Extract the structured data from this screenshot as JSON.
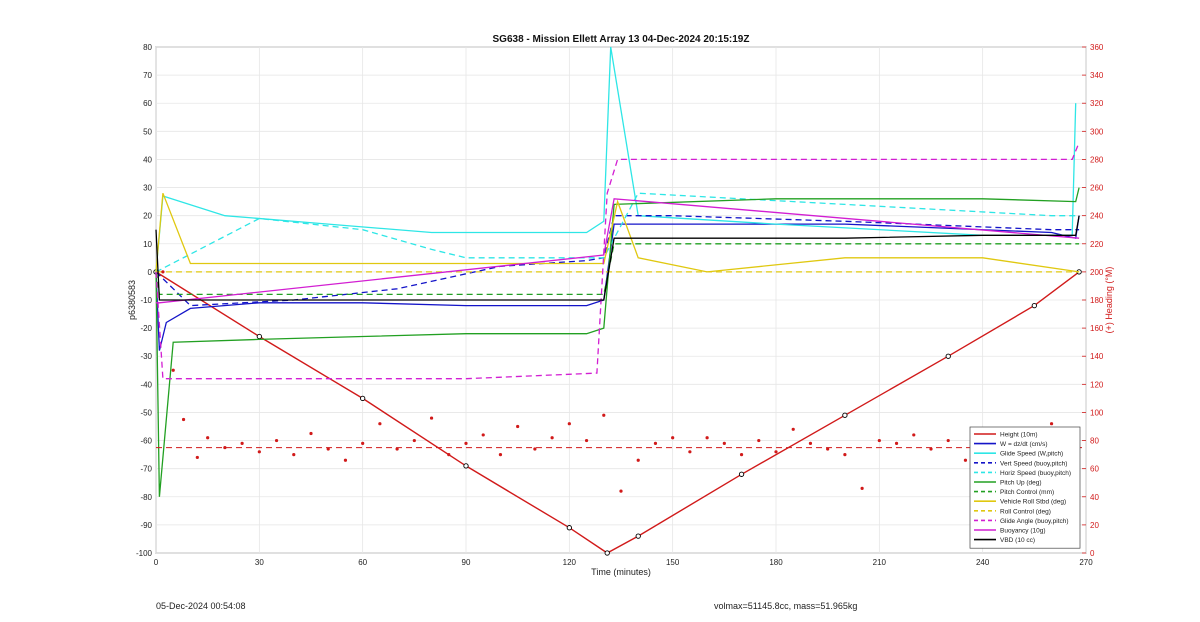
{
  "footer": {
    "left": "05-Dec-2024 00:54:08",
    "right": "volmax=51145.8cc, mass=51.965kg"
  },
  "colors": {
    "height": "#d11a1a",
    "w": "#1414c8",
    "glide_speed": "#2ee6e6",
    "vert_speed": "#1414c8",
    "horiz_speed": "#2ee6e6",
    "pitch_up": "#22a022",
    "pitch_control": "#22a022",
    "vehicle_roll": "#e0c810",
    "roll_control": "#e0c810",
    "glide_angle": "#d21ed2",
    "buoyancy": "#d21ed2",
    "vbd": "#000000",
    "heading": "#d11a1a"
  },
  "chart_data": {
    "type": "line",
    "title": "SG638 - Mission Ellett Array 13 04-Dec-2024 20:15:19Z",
    "xlabel": "Time (minutes)",
    "ylabel": "p6380583",
    "y2label": "(+) Heading (°M)",
    "xlim": [
      0,
      270
    ],
    "ylim": [
      -100,
      80
    ],
    "y2lim": [
      0,
      360
    ],
    "xticks": [
      "0",
      "30",
      "60",
      "90",
      "120",
      "150",
      "180",
      "210",
      "240",
      "270"
    ],
    "yticks": [
      "-100",
      "-90",
      "-80",
      "-70",
      "-60",
      "-50",
      "-40",
      "-30",
      "-20",
      "-10",
      "0",
      "10",
      "20",
      "30",
      "40",
      "50",
      "60",
      "70",
      "80"
    ],
    "y2ticks": [
      "0",
      "20",
      "40",
      "60",
      "80",
      "100",
      "120",
      "140",
      "160",
      "180",
      "200",
      "220",
      "240",
      "260",
      "280",
      "300",
      "320",
      "340",
      "360"
    ],
    "grid": true,
    "legend_position": "bottom-right",
    "series": [
      {
        "name": "Height (10m)",
        "key": "height",
        "style": "solid",
        "x": [
          0,
          30,
          60,
          90,
          120,
          131,
          140,
          170,
          200,
          230,
          255,
          268
        ],
        "y": [
          0,
          -23,
          -45,
          -69,
          -91,
          -100,
          -94,
          -72,
          -51,
          -30,
          -12,
          0
        ]
      },
      {
        "name": "W = dz/dt (cm/s)",
        "key": "w",
        "style": "solid",
        "x": [
          0,
          1,
          3,
          10,
          30,
          60,
          90,
          125,
          130,
          133,
          150,
          200,
          260,
          267,
          268
        ],
        "y": [
          0,
          -28,
          -18,
          -13,
          -11,
          -11,
          -12,
          -12,
          -10,
          17,
          17,
          17,
          14,
          12,
          20
        ]
      },
      {
        "name": "Glide Speed (W,pitch)",
        "key": "glide_speed",
        "style": "solid",
        "x": [
          0,
          2,
          20,
          50,
          80,
          110,
          125,
          130,
          132,
          140,
          180,
          240,
          266,
          267
        ],
        "y": [
          0,
          27,
          20,
          17,
          14,
          14,
          14,
          18,
          80,
          20,
          17,
          13,
          13,
          60
        ]
      },
      {
        "name": "Vert Speed (buoy,pitch)",
        "key": "vert_speed",
        "style": "dashed",
        "x": [
          0,
          10,
          40,
          70,
          100,
          125,
          130,
          133,
          150,
          200,
          260,
          268
        ],
        "y": [
          0,
          -12,
          -10,
          -6,
          2,
          4,
          5,
          20,
          20,
          18,
          15,
          15
        ]
      },
      {
        "name": "Horiz Speed (buoy,pitch)",
        "key": "horiz_speed",
        "style": "dashed",
        "x": [
          0,
          30,
          60,
          80,
          90,
          130,
          140,
          200,
          260,
          268
        ],
        "y": [
          0,
          19,
          15,
          8,
          5,
          5,
          28,
          24,
          20,
          20
        ]
      },
      {
        "name": "Pitch Up (deg)",
        "key": "pitch_up",
        "style": "solid",
        "x": [
          0,
          1,
          5,
          30,
          60,
          90,
          125,
          130,
          133,
          180,
          240,
          267,
          268
        ],
        "y": [
          0,
          -80,
          -25,
          -24,
          -23,
          -22,
          -22,
          -20,
          24,
          26,
          26,
          25,
          30
        ]
      },
      {
        "name": "Pitch Control (mm)",
        "key": "pitch_control",
        "style": "dashed",
        "x": [
          0,
          1,
          130,
          133,
          268
        ],
        "y": [
          0,
          -8,
          -8,
          10,
          10
        ]
      },
      {
        "name": "Vehicle Roll Stbd (deg)",
        "key": "vehicle_roll",
        "style": "solid",
        "x": [
          0,
          2,
          10,
          30,
          60,
          90,
          120,
          130,
          134,
          140,
          160,
          200,
          240,
          268
        ],
        "y": [
          0,
          28,
          3,
          3,
          3,
          3,
          3,
          3,
          25,
          5,
          0,
          5,
          5,
          0
        ]
      },
      {
        "name": "Roll Control (deg)",
        "key": "roll_control",
        "style": "dashed",
        "x": [
          0,
          1,
          130,
          133,
          268
        ],
        "y": [
          0,
          0,
          0,
          0,
          0
        ]
      },
      {
        "name": "Glide Angle (buoy,pitch)",
        "key": "glide_angle",
        "style": "dashed",
        "x": [
          0,
          2,
          30,
          90,
          128,
          131,
          134,
          200,
          266,
          268
        ],
        "y": [
          0,
          -38,
          -38,
          -38,
          -36,
          28,
          40,
          40,
          40,
          46
        ]
      },
      {
        "name": "Buoyancy (10g)",
        "key": "buoyancy",
        "style": "solid",
        "x": [
          0,
          1,
          130,
          133,
          268
        ],
        "y": [
          -11,
          -11,
          6,
          26,
          12
        ]
      },
      {
        "name": "VBD (10 cc)",
        "key": "vbd",
        "style": "solid",
        "x": [
          0,
          1,
          60,
          130,
          133,
          160,
          200,
          240,
          267,
          268
        ],
        "y": [
          15,
          -10,
          -10,
          -10,
          12,
          12,
          12,
          13,
          13,
          20
        ]
      }
    ],
    "heading": {
      "name": "Heading",
      "axis": "right",
      "style": "dots",
      "mean": 75,
      "x": [
        2,
        5,
        8,
        12,
        15,
        20,
        25,
        30,
        35,
        40,
        45,
        50,
        55,
        60,
        65,
        70,
        75,
        80,
        85,
        90,
        95,
        100,
        105,
        110,
        115,
        120,
        125,
        130,
        135,
        140,
        145,
        150,
        155,
        160,
        165,
        170,
        175,
        180,
        185,
        190,
        195,
        200,
        205,
        210,
        215,
        220,
        225,
        230,
        235,
        240,
        245,
        250,
        255,
        260,
        265
      ],
      "y": [
        200,
        130,
        95,
        68,
        82,
        75,
        78,
        72,
        80,
        70,
        85,
        74,
        66,
        78,
        92,
        74,
        80,
        96,
        70,
        78,
        84,
        70,
        90,
        74,
        82,
        92,
        80,
        98,
        44,
        66,
        78,
        82,
        72,
        82,
        78,
        70,
        80,
        72,
        88,
        78,
        74,
        70,
        46,
        80,
        78,
        84,
        74,
        80,
        66,
        78,
        86,
        74,
        80,
        92,
        72
      ]
    }
  }
}
